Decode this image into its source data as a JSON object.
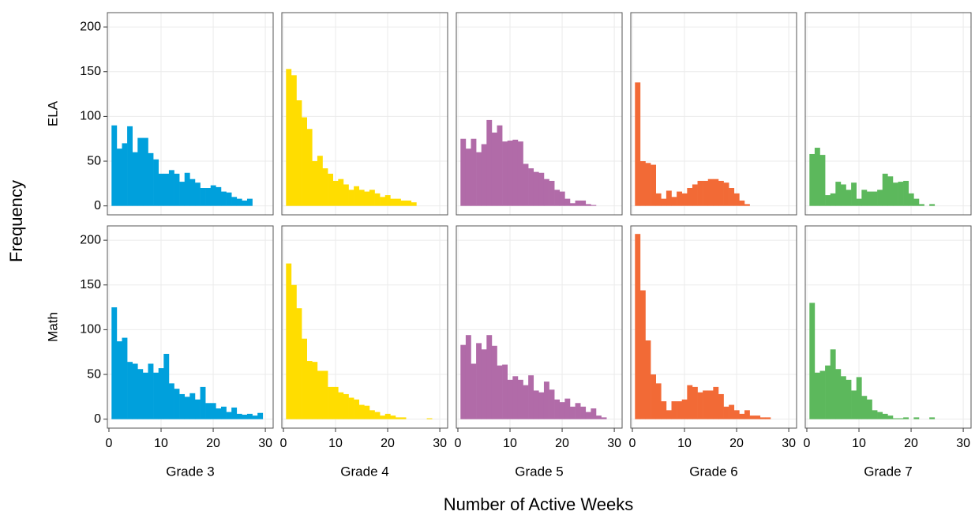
{
  "chart_data": {
    "type": "histogram",
    "xlabel": "Number of Active Weeks",
    "ylabel": "Frequency",
    "rows": [
      "ELA",
      "Math"
    ],
    "columns": [
      "Grade 3",
      "Grade 4",
      "Grade 5",
      "Grade 6",
      "Grade 7"
    ],
    "xlim": [
      -0.3,
      31.5
    ],
    "ylim": [
      -10,
      216
    ],
    "xticks": [
      0,
      10,
      20,
      30
    ],
    "yticks": [
      0,
      50,
      100,
      150,
      200
    ],
    "grid": true,
    "bins": [
      0.5,
      1.5,
      2.5,
      3.5,
      4.5,
      5.5,
      6.5,
      7.5,
      8.5,
      9.5,
      10.5,
      11.5,
      12.5,
      13.5,
      14.5,
      15.5,
      16.5,
      17.5,
      18.5,
      19.5,
      20.5,
      21.5,
      22.5,
      23.5,
      24.5,
      25.5,
      26.5,
      27.5,
      28.5,
      29.5
    ],
    "panels": [
      [
        {
          "color": "#00a0dc",
          "counts": [
            90,
            64,
            70,
            89,
            60,
            76,
            76,
            59,
            52,
            36,
            36,
            40,
            36,
            27,
            37,
            30,
            26,
            20,
            20,
            23,
            21,
            16,
            15,
            10,
            8,
            6,
            8,
            0,
            0
          ]
        },
        {
          "color": "#ffdd00",
          "counts": [
            153,
            146,
            118,
            99,
            86,
            50,
            56,
            42,
            36,
            28,
            30,
            24,
            18,
            22,
            18,
            16,
            18,
            14,
            10,
            12,
            8,
            8,
            6,
            6,
            4,
            0,
            0,
            0,
            0
          ]
        },
        {
          "color": "#b16ba8",
          "counts": [
            75,
            64,
            75,
            60,
            69,
            96,
            82,
            90,
            72,
            73,
            74,
            72,
            47,
            42,
            38,
            37,
            30,
            28,
            18,
            16,
            8,
            3,
            6,
            6,
            2,
            1,
            0,
            0,
            0
          ]
        },
        {
          "color": "#f26a36",
          "counts": [
            138,
            50,
            48,
            46,
            14,
            8,
            17,
            10,
            16,
            14,
            20,
            24,
            28,
            28,
            30,
            30,
            28,
            26,
            20,
            14,
            6,
            2,
            0,
            0,
            0,
            0,
            0,
            0,
            0
          ]
        },
        {
          "color": "#5cb85c",
          "counts": [
            58,
            65,
            57,
            12,
            14,
            27,
            24,
            18,
            26,
            8,
            18,
            16,
            16,
            18,
            36,
            33,
            26,
            27,
            28,
            14,
            8,
            2,
            0,
            2,
            0,
            0,
            0,
            0,
            0
          ]
        }
      ],
      [
        {
          "color": "#00a0dc",
          "counts": [
            125,
            87,
            91,
            64,
            62,
            56,
            52,
            62,
            52,
            57,
            73,
            40,
            34,
            28,
            25,
            29,
            22,
            36,
            18,
            18,
            12,
            14,
            8,
            13,
            6,
            5,
            6,
            4,
            7
          ]
        },
        {
          "color": "#ffdd00",
          "counts": [
            174,
            150,
            124,
            90,
            65,
            64,
            54,
            54,
            36,
            36,
            30,
            28,
            24,
            22,
            16,
            15,
            10,
            8,
            4,
            6,
            4,
            2,
            2,
            0,
            0,
            0,
            0,
            1,
            0
          ]
        },
        {
          "color": "#b16ba8",
          "counts": [
            83,
            94,
            62,
            85,
            78,
            94,
            82,
            60,
            61,
            44,
            48,
            44,
            38,
            49,
            32,
            30,
            42,
            33,
            22,
            19,
            23,
            14,
            18,
            14,
            8,
            12,
            4,
            2,
            0
          ]
        },
        {
          "color": "#f26a36",
          "counts": [
            207,
            144,
            88,
            50,
            40,
            20,
            10,
            20,
            20,
            22,
            38,
            36,
            30,
            32,
            32,
            36,
            28,
            14,
            16,
            10,
            6,
            10,
            4,
            4,
            2,
            2,
            0,
            0,
            0
          ]
        },
        {
          "color": "#5cb85c",
          "counts": [
            130,
            52,
            54,
            60,
            78,
            56,
            48,
            44,
            32,
            47,
            26,
            22,
            10,
            8,
            6,
            4,
            1,
            1,
            2,
            0,
            2,
            0,
            0,
            2,
            0,
            0,
            0,
            0,
            0
          ]
        }
      ]
    ]
  }
}
